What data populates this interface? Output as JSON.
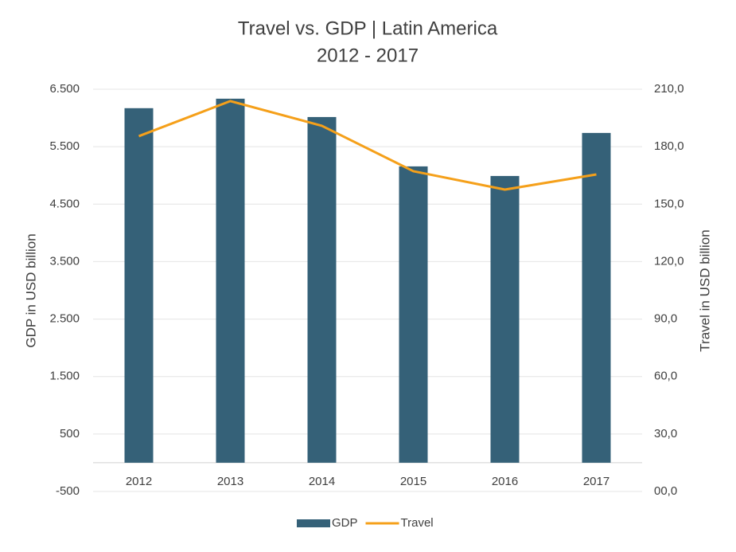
{
  "chart_data": {
    "type": "bar-line",
    "title": "Travel vs. GDP | Latin America",
    "subtitle": "2012 - 2017",
    "y_label": "GDP in USD billion",
    "y2_label": "Travel in USD billion",
    "categories": [
      "2012",
      "2013",
      "2014",
      "2015",
      "2016",
      "2017"
    ],
    "series": [
      {
        "name": "GDP",
        "type": "bar",
        "color": "#356178",
        "values": [
          6170,
          6335,
          6016,
          5157,
          4990,
          5739
        ]
      },
      {
        "name": "Travel",
        "type": "line",
        "axis": "y2",
        "color": "#f5a01a",
        "values": [
          185.5,
          203.8,
          190.9,
          167.2,
          157.6,
          165.5
        ]
      }
    ],
    "ylim": [
      -500,
      6500
    ],
    "yticks": [
      -500,
      500,
      {
        "value": 1500,
        "label": "1.500"
      },
      {
        "value": 2500,
        "label": "2.500"
      },
      {
        "value": 3500,
        "label": "3.500"
      },
      {
        "value": 4500,
        "label": "4.500"
      },
      {
        "value": 5500,
        "label": "5.500"
      },
      {
        "value": 6500,
        "label": "6.500"
      }
    ],
    "y2lim": [
      0,
      210
    ],
    "y2ticks": [
      {
        "value": 0,
        "label": "00,0"
      },
      {
        "value": 30,
        "label": "30,0"
      },
      {
        "value": 60,
        "label": "60,0"
      },
      {
        "value": 90,
        "label": "90,0"
      },
      {
        "value": 120,
        "label": "120,0"
      },
      {
        "value": 150,
        "label": "150,0"
      },
      {
        "value": 180,
        "label": "180,0"
      },
      {
        "value": 210,
        "label": "210,0"
      }
    ],
    "grid": true,
    "legend": "bottom"
  }
}
